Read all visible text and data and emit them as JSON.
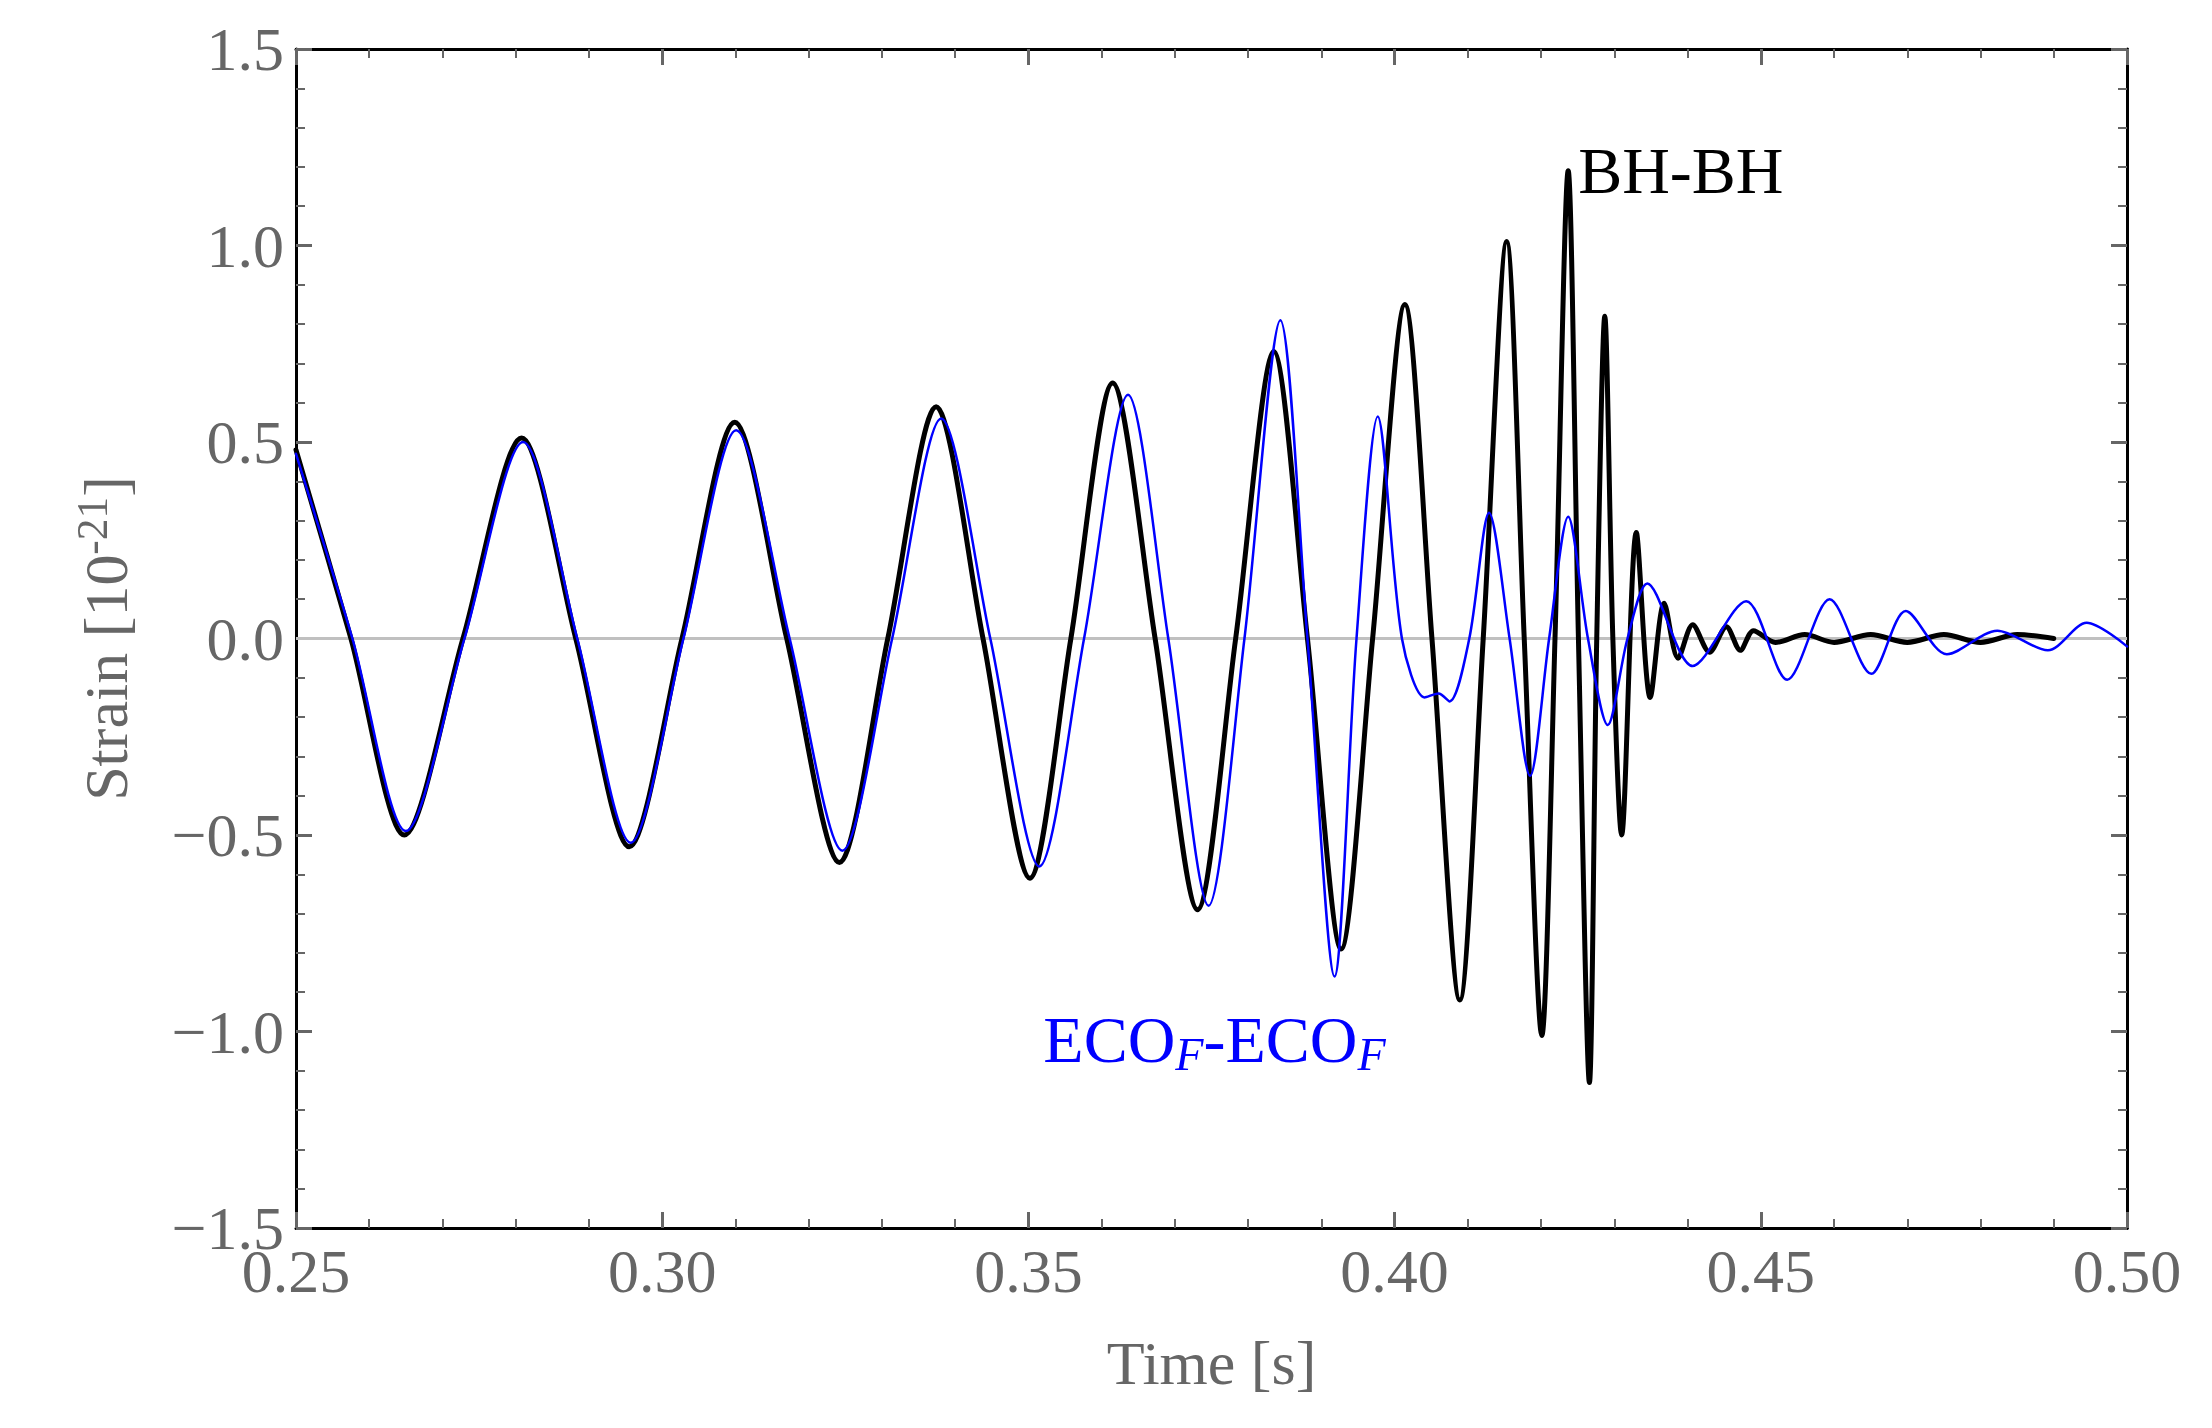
{
  "chart_data": {
    "type": "line",
    "xlabel": "Time [s]",
    "ylabel": "Strain [10$^{-21}$]",
    "xlim": [
      0.25,
      0.5
    ],
    "ylim": [
      -1.5,
      1.5
    ],
    "xticks": [
      {
        "value": 0.25,
        "label": "0.25"
      },
      {
        "value": 0.3,
        "label": "0.30"
      },
      {
        "value": 0.35,
        "label": "0.35"
      },
      {
        "value": 0.4,
        "label": "0.40"
      },
      {
        "value": 0.45,
        "label": "0.45"
      },
      {
        "value": 0.5,
        "label": "0.50"
      }
    ],
    "yticks": [
      {
        "value": -1.5,
        "label": "−1.5"
      },
      {
        "value": -1,
        "label": "−1.0"
      },
      {
        "value": -0.5,
        "label": "−0.5"
      },
      {
        "value": 0,
        "label": "0.0"
      },
      {
        "value": 0.5,
        "label": "0.5"
      },
      {
        "value": 1,
        "label": "1.0"
      },
      {
        "value": 1.5,
        "label": "1.5"
      }
    ],
    "grid": false,
    "legend": false,
    "marker": "none",
    "line_style": "solid",
    "ref_lines": [
      {
        "axis": "y",
        "value": 0,
        "color": "#c0c0c0"
      }
    ],
    "series": [
      {
        "name": "BH-BH",
        "color": "#000000",
        "x": [
          0.25,
          0.2575,
          0.2648,
          0.2728,
          0.2808,
          0.2882,
          0.2955,
          0.3027,
          0.3099,
          0.317,
          0.3242,
          0.3308,
          0.3374,
          0.3438,
          0.3502,
          0.3558,
          0.3615,
          0.3673,
          0.3731,
          0.3783,
          0.3835,
          0.3881,
          0.3927,
          0.397,
          0.4014,
          0.4051,
          0.4089,
          0.4121,
          0.4153,
          0.4177,
          0.4201,
          0.4219,
          0.4237,
          0.4251,
          0.4266,
          0.4276,
          0.4287,
          0.4298,
          0.431,
          0.433,
          0.4349,
          0.4368,
          0.4387,
          0.4407,
          0.443,
          0.4453,
          0.4472,
          0.449,
          0.452,
          0.456,
          0.46,
          0.465,
          0.47,
          0.475,
          0.48,
          0.485,
          0.49
        ],
        "values": [
          0.48,
          0,
          -0.5,
          0,
          0.51,
          0,
          -0.53,
          0,
          0.55,
          0,
          -0.57,
          0,
          0.59,
          0,
          -0.61,
          0,
          0.65,
          0,
          -0.69,
          0,
          0.73,
          0,
          -0.79,
          0,
          0.85,
          0,
          -0.92,
          0,
          1.01,
          0,
          -1.01,
          0,
          1.19,
          0,
          -1.13,
          0,
          0.82,
          0,
          -0.5,
          0.27,
          -0.15,
          0.09,
          -0.05,
          0.035,
          -0.035,
          0.03,
          -0.03,
          0.02,
          -0.01,
          0.01,
          -0.01,
          0.01,
          -0.01,
          0.01,
          -0.01,
          0.01,
          0
        ]
      },
      {
        "name": "ECO$_{F}$-ECO$_{F}$",
        "color": "#0000ff",
        "x": [
          0.25,
          0.2577,
          0.265,
          0.273,
          0.281,
          0.2884,
          0.2957,
          0.3029,
          0.3101,
          0.3174,
          0.3246,
          0.3314,
          0.3381,
          0.3448,
          0.3515,
          0.3576,
          0.3636,
          0.3691,
          0.3746,
          0.3795,
          0.3844,
          0.3881,
          0.3918,
          0.3948,
          0.3977,
          0.401,
          0.4041,
          0.406,
          0.4075,
          0.4102,
          0.4129,
          0.4157,
          0.4185,
          0.4211,
          0.4237,
          0.4264,
          0.4291,
          0.4318,
          0.4345,
          0.4407,
          0.448,
          0.4536,
          0.4594,
          0.4651,
          0.4698,
          0.4754,
          0.4823,
          0.4892,
          0.4945,
          0.5
        ],
        "values": [
          0.47,
          0,
          -0.49,
          0,
          0.5,
          0,
          -0.52,
          0,
          0.53,
          0,
          -0.54,
          0,
          0.56,
          0,
          -0.58,
          0,
          0.62,
          0,
          -0.68,
          0,
          0.81,
          0,
          -0.86,
          0,
          0.565,
          0,
          -0.15,
          -0.14,
          -0.16,
          0,
          0.32,
          0,
          -0.35,
          0,
          0.31,
          0,
          -0.22,
          0,
          0.14,
          -0.07,
          0.095,
          -0.105,
          0.1,
          -0.09,
          0.07,
          -0.04,
          0.02,
          -0.03,
          0.04,
          -0.02
        ]
      }
    ]
  }
}
